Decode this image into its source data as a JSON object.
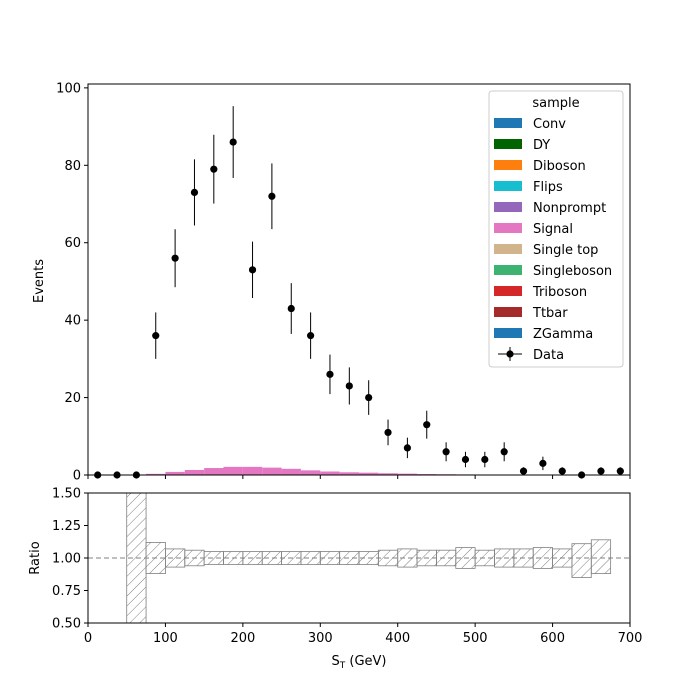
{
  "chart_data": [
    {
      "type": "bar",
      "panel": "main",
      "ylabel": "Events",
      "xlim": [
        0,
        700
      ],
      "ylim": [
        0,
        101
      ],
      "yticks": [
        0,
        20,
        40,
        60,
        80,
        100
      ],
      "legend": {
        "title": "sample",
        "placement": "top-right",
        "entries": [
          {
            "label": "Conv",
            "color": "#1f77b4",
            "marker": "patch"
          },
          {
            "label": "DY",
            "color": "#006400",
            "marker": "patch"
          },
          {
            "label": "Diboson",
            "color": "#ff7f0e",
            "marker": "patch"
          },
          {
            "label": "Flips",
            "color": "#17becf",
            "marker": "patch"
          },
          {
            "label": "Nonprompt",
            "color": "#9467bd",
            "marker": "patch"
          },
          {
            "label": "Signal",
            "color": "#e377c2",
            "marker": "patch"
          },
          {
            "label": "Single top",
            "color": "#d2b48c",
            "marker": "patch"
          },
          {
            "label": "Singleboson",
            "color": "#3cb371",
            "marker": "patch"
          },
          {
            "label": "Triboson",
            "color": "#d62728",
            "marker": "patch"
          },
          {
            "label": "Ttbar",
            "color": "#a52a2a",
            "marker": "patch"
          },
          {
            "label": "ZGamma",
            "color": "#1f77b4",
            "marker": "patch"
          },
          {
            "label": "Data",
            "color": "#000000",
            "marker": "errorbar"
          }
        ]
      },
      "series": [
        {
          "name": "Signal",
          "color": "#e377c2",
          "bin_edges": [
            75,
            100,
            125,
            150,
            175,
            200,
            225,
            250,
            275,
            300,
            325,
            350,
            375,
            400,
            425,
            450,
            475,
            500,
            525,
            550,
            575,
            600,
            625,
            650,
            675
          ],
          "values": [
            0.3,
            0.8,
            1.3,
            1.8,
            2.1,
            2.1,
            1.9,
            1.6,
            1.2,
            0.9,
            0.7,
            0.6,
            0.45,
            0.35,
            0.25,
            0.2,
            0.15,
            0.1,
            0.08,
            0.06,
            0.05,
            0.04,
            0.03,
            0.02
          ]
        },
        {
          "name": "Data",
          "color": "#000000",
          "x": [
            12.5,
            37.5,
            62.5,
            87.5,
            112.5,
            137.5,
            162.5,
            187.5,
            212.5,
            237.5,
            262.5,
            287.5,
            312.5,
            337.5,
            362.5,
            387.5,
            412.5,
            437.5,
            462.5,
            487.5,
            512.5,
            537.5,
            562.5,
            587.5,
            612.5,
            637.5,
            662.5,
            687.5
          ],
          "y": [
            0,
            0,
            0,
            36,
            56,
            73,
            79,
            86,
            53,
            72,
            43,
            36,
            26,
            23,
            20,
            11,
            7,
            13,
            6,
            4,
            4,
            6,
            1,
            3,
            1,
            0,
            1,
            1
          ]
        }
      ]
    },
    {
      "type": "area",
      "panel": "ratio",
      "xlabel": "S_T (GeV)",
      "ylabel": "Ratio",
      "xlim": [
        0,
        700
      ],
      "ylim": [
        0.5,
        1.5
      ],
      "xticks": [
        0,
        100,
        200,
        300,
        400,
        500,
        600,
        700
      ],
      "yticks": [
        "0.50",
        "0.75",
        "1.00",
        "1.25",
        "1.50"
      ],
      "reference_line": 1.0,
      "uncertainty_band": {
        "bin_edges": [
          50,
          75,
          100,
          125,
          150,
          175,
          200,
          225,
          250,
          275,
          300,
          325,
          350,
          375,
          400,
          425,
          450,
          475,
          500,
          525,
          550,
          575,
          600,
          625,
          650,
          675
        ],
        "low": [
          0.0,
          0.88,
          0.93,
          0.94,
          0.95,
          0.95,
          0.95,
          0.95,
          0.95,
          0.95,
          0.95,
          0.95,
          0.95,
          0.94,
          0.93,
          0.94,
          0.94,
          0.92,
          0.94,
          0.93,
          0.93,
          0.92,
          0.93,
          0.85,
          0.88
        ],
        "high": [
          1.6,
          1.12,
          1.07,
          1.06,
          1.05,
          1.05,
          1.05,
          1.05,
          1.05,
          1.05,
          1.05,
          1.05,
          1.05,
          1.06,
          1.07,
          1.06,
          1.06,
          1.08,
          1.06,
          1.07,
          1.07,
          1.08,
          1.07,
          1.11,
          1.14
        ]
      }
    }
  ]
}
